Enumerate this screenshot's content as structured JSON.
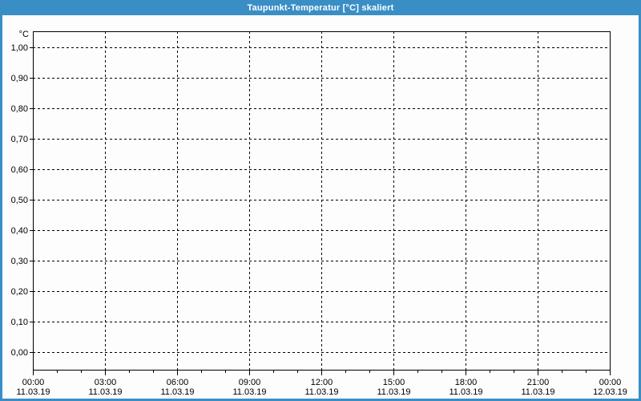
{
  "window": {
    "title": "Taupunkt-Temperatur [°C] skaliert"
  },
  "colors": {
    "titlebar": "#3a8ec6",
    "window_border": "#3a8ec6",
    "content_bg": "#fcfdfc",
    "grid": "#000000",
    "axis": "#000000",
    "label_text": "#000000",
    "title_text": "#ffffff"
  },
  "chart_data": {
    "type": "line",
    "title": "Taupunkt-Temperatur [°C] skaliert",
    "ylabel": "°C",
    "xlabel": "",
    "ylim": [
      0.0,
      1.0
    ],
    "y_tick_step": 0.1,
    "grid": "dashed",
    "legend": "none",
    "y_ticks": [
      {
        "value": 1.0,
        "label": "1,00"
      },
      {
        "value": 0.9,
        "label": "0,90"
      },
      {
        "value": 0.8,
        "label": "0,80"
      },
      {
        "value": 0.7,
        "label": "0,70"
      },
      {
        "value": 0.6,
        "label": "0,60"
      },
      {
        "value": 0.5,
        "label": "0,50"
      },
      {
        "value": 0.4,
        "label": "0,40"
      },
      {
        "value": 0.3,
        "label": "0,30"
      },
      {
        "value": 0.2,
        "label": "0,20"
      },
      {
        "value": 0.1,
        "label": "0,10"
      },
      {
        "value": 0.0,
        "label": "0,00"
      }
    ],
    "x_range_hours": [
      0,
      24
    ],
    "x_minor_tick_hours": 1,
    "x_ticks": [
      {
        "hour": 0,
        "time": "00:00",
        "date": "11.03.19"
      },
      {
        "hour": 3,
        "time": "03:00",
        "date": "11.03.19"
      },
      {
        "hour": 6,
        "time": "06:00",
        "date": "11.03.19"
      },
      {
        "hour": 9,
        "time": "09:00",
        "date": "11.03.19"
      },
      {
        "hour": 12,
        "time": "12:00",
        "date": "11.03.19"
      },
      {
        "hour": 15,
        "time": "15:00",
        "date": "11.03.19"
      },
      {
        "hour": 18,
        "time": "18:00",
        "date": "11.03.19"
      },
      {
        "hour": 21,
        "time": "21:00",
        "date": "11.03.19"
      },
      {
        "hour": 24,
        "time": "00:00",
        "date": "12.03.19"
      }
    ],
    "series": []
  }
}
